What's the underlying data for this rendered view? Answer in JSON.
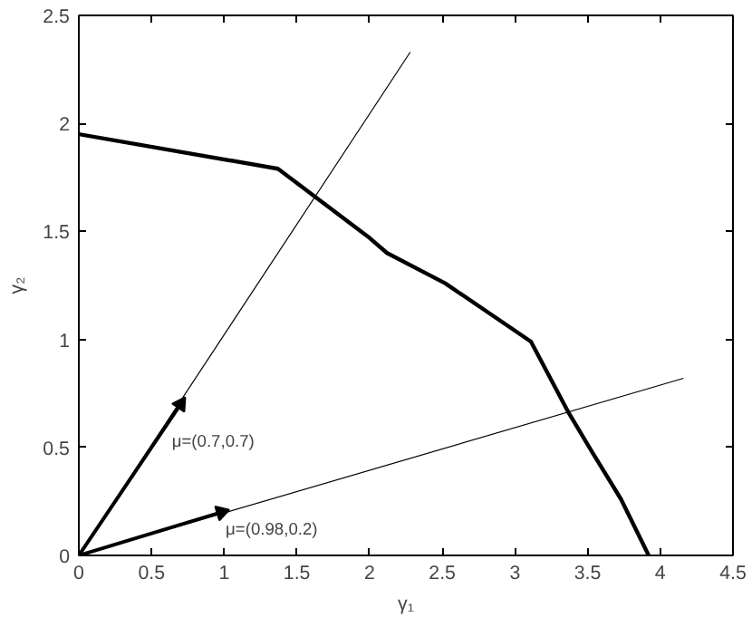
{
  "chart_data": {
    "type": "line",
    "xlabel": "γ₁",
    "ylabel": "γ₂",
    "xlim": [
      0,
      4.5
    ],
    "ylim": [
      0,
      2.5
    ],
    "xticks": [
      0,
      0.5,
      1,
      1.5,
      2,
      2.5,
      3,
      3.5,
      4,
      4.5
    ],
    "yticks": [
      0,
      0.5,
      1,
      1.5,
      2,
      2.5
    ],
    "grid": false,
    "marker": "none",
    "line_style": "solid",
    "series": [
      {
        "color": "#000000",
        "x": [
          0,
          1.37,
          2.0,
          2.12,
          2.52,
          3.11,
          3.37,
          3.53,
          3.73,
          3.92
        ],
        "values": [
          1.95,
          1.79,
          1.47,
          1.4,
          1.26,
          0.99,
          0.66,
          0.48,
          0.26,
          0
        ]
      },
      {
        "color": "#000000",
        "x": [
          0,
          2.28
        ],
        "values": [
          0,
          2.33
        ]
      },
      {
        "color": "#000000",
        "x": [
          0,
          4.16
        ],
        "values": [
          0,
          0.82
        ]
      },
      {
        "color": "#000000",
        "marker": "triangle",
        "x": [
          0,
          0.7
        ],
        "values": [
          0,
          0.7
        ]
      },
      {
        "color": "#000000",
        "marker": "triangle",
        "x": [
          0,
          0.98
        ],
        "values": [
          0,
          0.2
        ]
      }
    ],
    "annotations": [
      "μ=(0.7,0.7)",
      "μ=(0.98,0.2)"
    ]
  }
}
